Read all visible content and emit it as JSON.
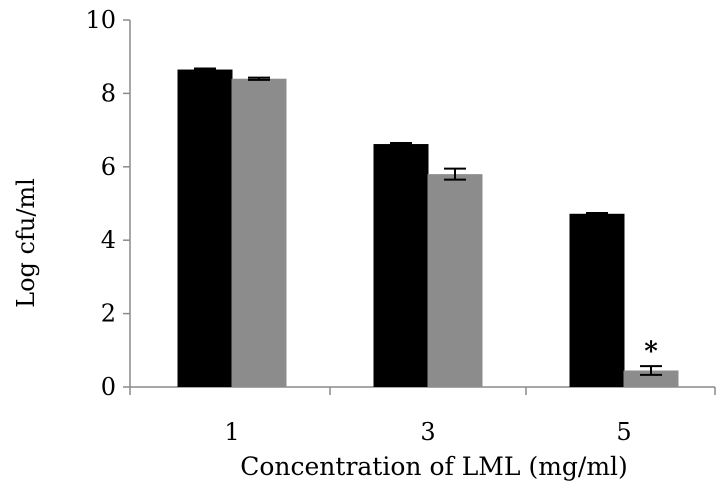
{
  "chart_data": {
    "type": "bar",
    "title": "",
    "xlabel": "Concentration of LML (mg/ml)",
    "ylabel": "Log cfu/ml",
    "categories": [
      "1",
      "3",
      "5"
    ],
    "ylim": [
      0,
      10
    ],
    "yticks": [
      "0",
      "2",
      "4",
      "6",
      "8",
      "10"
    ],
    "grid": false,
    "legend": "none",
    "series": [
      {
        "values": [
          8.65,
          6.62,
          4.72
        ],
        "errors": [
          0.03,
          0.03,
          0.02
        ],
        "color": "#000000"
      },
      {
        "values": [
          8.4,
          5.8,
          0.45
        ],
        "errors": [
          0.03,
          0.15,
          0.12
        ],
        "color": "#8c8c8c"
      }
    ],
    "annotations": [
      {
        "category": "5",
        "series": 1,
        "text": "*"
      }
    ]
  }
}
